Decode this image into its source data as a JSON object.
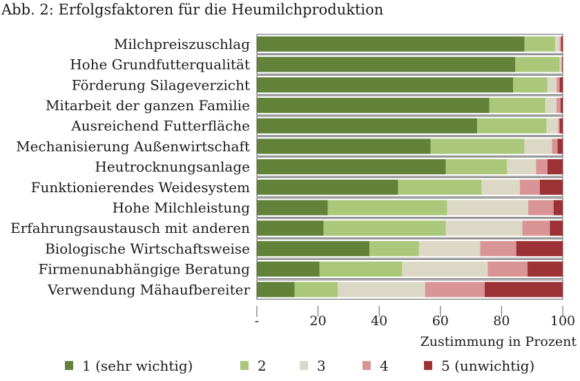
{
  "chart_data": {
    "type": "bar",
    "orientation": "horizontal",
    "stacked": true,
    "title": "Abb. 2: Erfolgsfaktoren für die Heumilchproduktion",
    "xlabel": "Zustimmung in Prozent",
    "xlim": [
      0,
      100
    ],
    "xticks": [
      "-",
      "20",
      "40",
      "60",
      "80",
      "100"
    ],
    "grid": false,
    "legend_position": "bottom",
    "categories": [
      "Milchpreiszuschlag",
      "Hohe Grundfutterqualität",
      "Förderung Silageverzicht",
      "Mitarbeit der ganzen Familie",
      "Ausreichend Futterfläche",
      "Mechanisierung Außenwirtschaft",
      "Heutrocknungsanlage",
      "Funktionierendes Weidesystem",
      "Hohe Milchleistung",
      "Erfahrungsaustausch mit anderen",
      "Biologische Wirtschaftsweise",
      "Firmenunabhängige Beratung",
      "Verwendung Mähaufbereiter"
    ],
    "series": [
      {
        "name": "1 (sehr wichtig)",
        "color": "#62823a",
        "values": [
          87.5,
          84.5,
          83.8,
          76,
          72,
          56.8,
          61.8,
          46.2,
          23.2,
          21.8,
          36.8,
          20.5,
          12.3
        ]
      },
      {
        "name": "2",
        "color": "#abc87a",
        "values": [
          10,
          14.5,
          11.2,
          18.3,
          22.7,
          30.7,
          20,
          27.3,
          39,
          40,
          16.2,
          27,
          14.2
        ]
      },
      {
        "name": "3",
        "color": "#dcd8c6",
        "values": [
          1.5,
          0.5,
          3,
          3.7,
          3.8,
          9,
          9.5,
          12.5,
          26.5,
          25,
          20,
          28,
          28.5
        ]
      },
      {
        "name": "4",
        "color": "#d99595",
        "values": [
          0.5,
          0.3,
          1,
          1.3,
          0.5,
          1.8,
          3.7,
          6.5,
          8.3,
          9,
          11.8,
          13,
          19.5
        ]
      },
      {
        "name": "5 (unwichtig)",
        "color": "#9c3236",
        "values": [
          0.5,
          0.2,
          1,
          0.7,
          1,
          1.7,
          5,
          7.5,
          3,
          4.2,
          15.2,
          11.5,
          25.5
        ]
      }
    ]
  }
}
